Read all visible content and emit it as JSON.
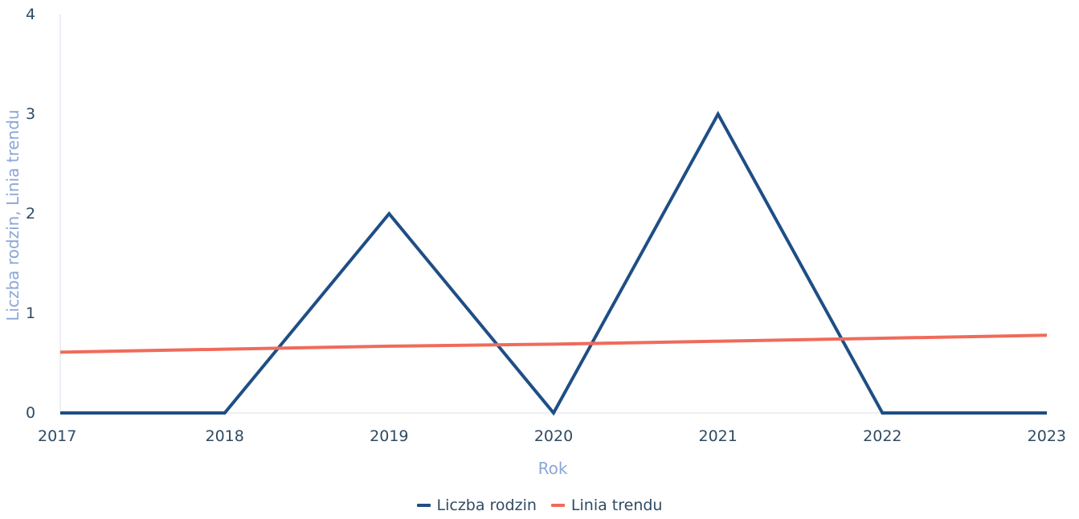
{
  "chart_data": {
    "type": "line",
    "x": [
      "2017",
      "2018",
      "2019",
      "2020",
      "2021",
      "2022",
      "2023"
    ],
    "series": [
      {
        "name": "Liczba rodzin",
        "color": "#1f4e85",
        "values": [
          0,
          0,
          2,
          0,
          3,
          0,
          0
        ]
      },
      {
        "name": "Linia trendu",
        "color": "#ef6b5b",
        "values": [
          0.61,
          0.64,
          0.67,
          0.69,
          0.72,
          0.75,
          0.78
        ]
      }
    ],
    "xlabel": "Rok",
    "ylabel": "Liczba rodzin, Linia trendu",
    "ylim": [
      0,
      4
    ],
    "yticks": [
      "0",
      "1",
      "2",
      "3",
      "4"
    ],
    "grid": false,
    "legend": "bottom-center",
    "colors": {
      "axis_title": "#8aa6d8",
      "tick": "#2f4a63"
    }
  }
}
